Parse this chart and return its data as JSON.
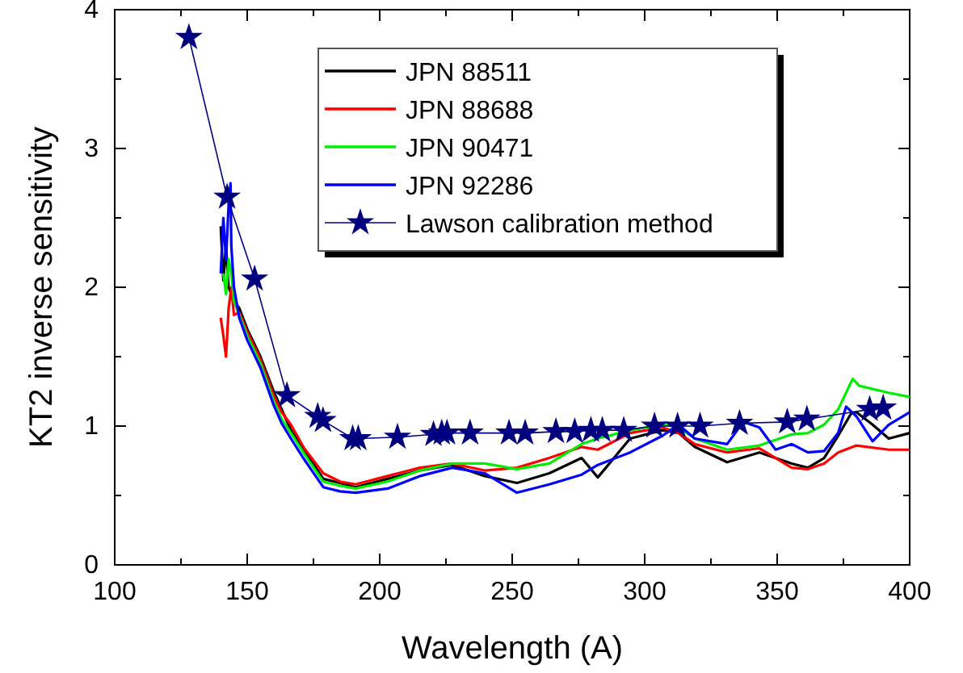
{
  "chart_data": {
    "type": "line",
    "xlabel": "Wavelength (A)",
    "ylabel": "KT2 inverse sensitivity",
    "xlim": [
      100,
      400
    ],
    "xticks": [
      100,
      {
        "value": 125,
        "label": null
      },
      150,
      {
        "value": 175,
        "label": null
      },
      200,
      {
        "value": 225,
        "label": null
      },
      250,
      {
        "value": 275,
        "label": null
      },
      300,
      {
        "value": 325,
        "label": null
      },
      350,
      {
        "value": 375,
        "label": null
      },
      400
    ],
    "ylim": [
      0,
      4
    ],
    "yticks": [
      0,
      {
        "value": 0.5,
        "label": null
      },
      1,
      {
        "value": 1.5,
        "label": null
      },
      2,
      {
        "value": 2.5,
        "label": null
      },
      3,
      {
        "value": 3.5,
        "label": null
      },
      4
    ],
    "grid": false,
    "legend": "top",
    "line_style": "solid",
    "series": [
      {
        "name": "JPN 88511",
        "color": "#000000",
        "marker": "none",
        "x": [
          140,
          141,
          142,
          143,
          144,
          145,
          147,
          150,
          155,
          160,
          163,
          166.5,
          171.5,
          178.7,
          185,
          190.9,
          203,
          215.2,
          227.4,
          239.6,
          251.8,
          264,
          276.2,
          282.3,
          294.5,
          306.7,
          312.8,
          318.9,
          331.1,
          343.3,
          355.5,
          361.6,
          367.7,
          373,
          377.9,
          379.9,
          386,
          392.1,
          400
        ],
        "values": [
          2.44,
          2.05,
          2.3,
          2.0,
          null,
          1.9,
          1.85,
          1.7,
          1.5,
          1.25,
          1.12,
          0.97,
          0.83,
          0.62,
          0.59,
          0.56,
          0.62,
          0.68,
          0.72,
          0.64,
          0.59,
          0.66,
          0.77,
          0.63,
          0.91,
          0.97,
          0.95,
          0.85,
          0.74,
          0.81,
          0.73,
          0.7,
          0.77,
          0.93,
          1.09,
          1.1,
          1.01,
          0.91,
          0.95
        ]
      },
      {
        "name": "JPN 88688",
        "color": "#ff0000",
        "marker": "none",
        "x": [
          140,
          141,
          142,
          143,
          144,
          145,
          147,
          150,
          155,
          160,
          163,
          166.5,
          171.5,
          178.7,
          185,
          190.9,
          203,
          215.2,
          227.4,
          239.6,
          251.8,
          264,
          276.2,
          282.3,
          294.5,
          306.7,
          312.8,
          318.9,
          331.1,
          343.3,
          355.5,
          361.6,
          367.7,
          373,
          379.9,
          392.1,
          400
        ],
        "values": [
          1.78,
          1.65,
          1.5,
          1.85,
          2.0,
          1.8,
          1.82,
          1.68,
          1.48,
          1.22,
          1.1,
          1.01,
          0.84,
          0.66,
          0.6,
          0.58,
          0.64,
          0.7,
          0.73,
          0.68,
          0.7,
          0.77,
          0.85,
          0.83,
          0.95,
          0.99,
          0.95,
          0.87,
          0.81,
          0.84,
          0.7,
          0.69,
          0.73,
          0.81,
          0.86,
          0.83,
          0.83
        ]
      },
      {
        "name": "JPN 90471",
        "color": "#00ee00",
        "marker": "none",
        "x": [
          141,
          142,
          143,
          144,
          145,
          147,
          150,
          155,
          160,
          163,
          166.5,
          171.5,
          178.7,
          185,
          190.9,
          203,
          215.2,
          227.4,
          239.6,
          251.8,
          264,
          276.2,
          282.3,
          294.5,
          306.7,
          312.8,
          318.9,
          331.1,
          343.3,
          355.5,
          361.6,
          367.7,
          373,
          378.5,
          381,
          392.1,
          400
        ],
        "values": [
          2.1,
          1.95,
          2.2,
          2.1,
          1.9,
          1.8,
          1.65,
          1.45,
          1.18,
          1.05,
          0.95,
          0.8,
          0.6,
          0.57,
          0.55,
          0.6,
          0.68,
          0.73,
          0.73,
          0.69,
          0.73,
          0.87,
          0.91,
          0.97,
          1.01,
          0.99,
          0.91,
          0.83,
          0.86,
          0.94,
          0.95,
          1.01,
          1.12,
          1.34,
          1.29,
          1.24,
          1.21
        ]
      },
      {
        "name": "JPN 92286",
        "color": "#0000ff",
        "marker": "none",
        "x": [
          140,
          141,
          142,
          143,
          143.7,
          144,
          145,
          147,
          150,
          155,
          160,
          163,
          166.5,
          171.5,
          178.7,
          185,
          190.9,
          203,
          215.2,
          227.4,
          239.6,
          251.8,
          264,
          276.2,
          282.3,
          294.5,
          306.7,
          312.8,
          318.9,
          331.1,
          337.2,
          343.3,
          349.4,
          355.5,
          361.6,
          367.7,
          373,
          376,
          379.9,
          386,
          392.1,
          400
        ],
        "values": [
          2.1,
          2.5,
          2.2,
          2.6,
          2.75,
          2.3,
          2.0,
          1.78,
          1.62,
          1.42,
          1.15,
          1.02,
          0.91,
          0.76,
          0.56,
          0.53,
          0.52,
          0.55,
          0.64,
          0.7,
          0.66,
          0.52,
          0.58,
          0.65,
          0.72,
          0.81,
          0.93,
          1.01,
          0.91,
          0.87,
          1.03,
          0.99,
          0.83,
          0.87,
          0.81,
          0.82,
          0.95,
          1.14,
          1.07,
          0.89,
          1.01,
          1.1
        ]
      },
      {
        "name": "Lawson calibration method",
        "color": "#000080",
        "marker": "star",
        "x": [
          128,
          142.4,
          152.8,
          165,
          176.6,
          178.6,
          189.8,
          191.9,
          206.7,
          220.3,
          223.4,
          225.4,
          234.1,
          248.8,
          254.9,
          266.5,
          273.6,
          279.7,
          284,
          292.1,
          303.7,
          312.4,
          320.9,
          335.8,
          353.8,
          361.2,
          384.9,
          390
        ],
        "values": [
          3.8,
          2.65,
          2.06,
          1.22,
          1.07,
          1.04,
          0.91,
          0.91,
          0.92,
          0.94,
          0.95,
          0.95,
          0.95,
          0.95,
          0.95,
          0.96,
          0.96,
          0.97,
          0.97,
          0.97,
          1.0,
          1.0,
          1.0,
          1.02,
          1.03,
          1.05,
          1.12,
          1.13
        ]
      }
    ]
  }
}
